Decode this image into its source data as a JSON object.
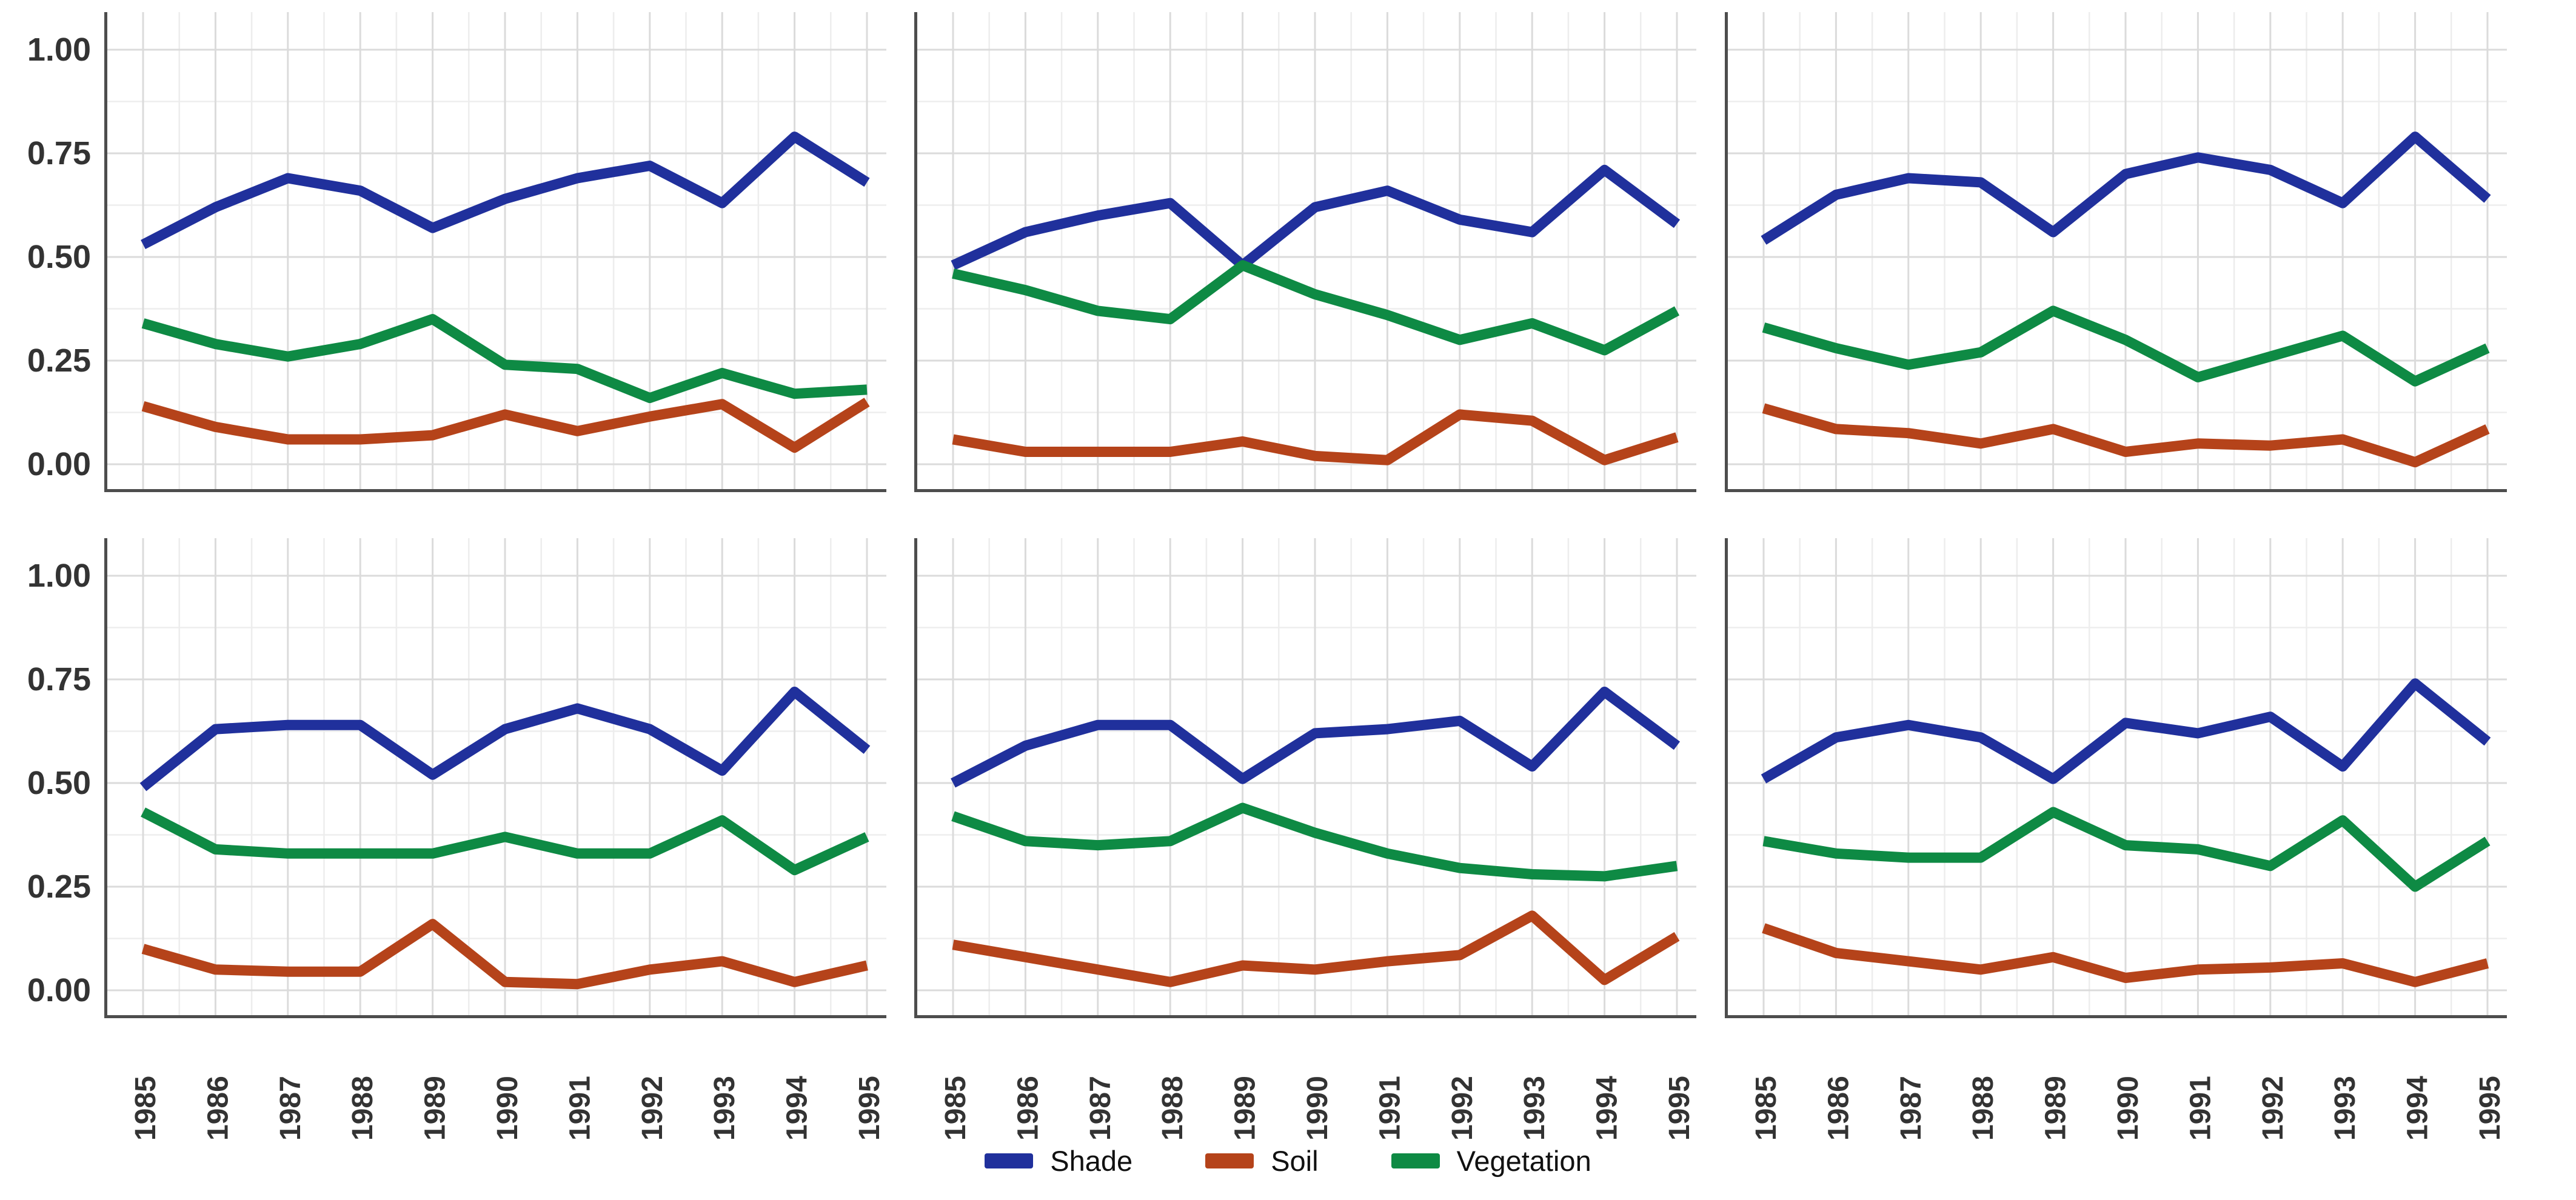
{
  "chart_data": {
    "type": "line",
    "layout": "facet grid, 2 rows x 3 columns, shared axes",
    "x": [
      1985,
      1986,
      1987,
      1988,
      1989,
      1990,
      1991,
      1992,
      1993,
      1994,
      1995
    ],
    "x_tick_labels": [
      "1985",
      "1986",
      "1987",
      "1988",
      "1989",
      "1990",
      "1991",
      "1992",
      "1993",
      "1994",
      "1995"
    ],
    "x_tick_rotation_deg": -90,
    "y_tick_labels": [
      "1.00",
      "0.75",
      "0.50",
      "0.25",
      "0.00"
    ],
    "y_tick_values": [
      1.0,
      0.75,
      0.5,
      0.25,
      0.0
    ],
    "ylim": [
      0,
      1
    ],
    "grid": "major and minor gridlines, light gray on white panels",
    "legend_position": "bottom-center",
    "series_names": [
      "Shade",
      "Soil",
      "Vegetation"
    ],
    "panels": [
      {
        "id": "top-left",
        "row": 0,
        "col": 0,
        "series": {
          "Shade": [
            0.53,
            0.62,
            0.69,
            0.66,
            0.57,
            0.64,
            0.69,
            0.72,
            0.63,
            0.79,
            0.68
          ],
          "Soil": [
            0.14,
            0.09,
            0.06,
            0.06,
            0.07,
            0.12,
            0.08,
            0.115,
            0.145,
            0.04,
            0.15
          ],
          "Vegetation": [
            0.34,
            0.29,
            0.26,
            0.29,
            0.35,
            0.24,
            0.23,
            0.16,
            0.22,
            0.17,
            0.18
          ]
        }
      },
      {
        "id": "top-middle",
        "row": 0,
        "col": 1,
        "series": {
          "Shade": [
            0.48,
            0.56,
            0.6,
            0.63,
            0.48,
            0.62,
            0.66,
            0.59,
            0.56,
            0.71,
            0.58
          ],
          "Soil": [
            0.06,
            0.03,
            0.03,
            0.03,
            0.055,
            0.02,
            0.01,
            0.12,
            0.105,
            0.01,
            0.065
          ],
          "Vegetation": [
            0.46,
            0.42,
            0.37,
            0.35,
            0.48,
            0.41,
            0.36,
            0.3,
            0.34,
            0.275,
            0.37
          ]
        }
      },
      {
        "id": "top-right",
        "row": 0,
        "col": 2,
        "series": {
          "Shade": [
            0.54,
            0.65,
            0.69,
            0.68,
            0.56,
            0.7,
            0.74,
            0.71,
            0.63,
            0.79,
            0.64
          ],
          "Soil": [
            0.135,
            0.085,
            0.075,
            0.05,
            0.085,
            0.03,
            0.05,
            0.045,
            0.06,
            0.005,
            0.085
          ],
          "Vegetation": [
            0.33,
            0.28,
            0.24,
            0.27,
            0.37,
            0.3,
            0.21,
            0.26,
            0.31,
            0.2,
            0.28
          ]
        }
      },
      {
        "id": "bottom-left",
        "row": 1,
        "col": 0,
        "series": {
          "Shade": [
            0.49,
            0.63,
            0.64,
            0.64,
            0.52,
            0.63,
            0.68,
            0.63,
            0.53,
            0.72,
            0.58
          ],
          "Soil": [
            0.1,
            0.05,
            0.045,
            0.045,
            0.16,
            0.02,
            0.015,
            0.05,
            0.07,
            0.02,
            0.06
          ],
          "Vegetation": [
            0.43,
            0.34,
            0.33,
            0.33,
            0.33,
            0.37,
            0.33,
            0.33,
            0.41,
            0.29,
            0.37
          ]
        }
      },
      {
        "id": "bottom-middle",
        "row": 1,
        "col": 1,
        "series": {
          "Shade": [
            0.5,
            0.59,
            0.64,
            0.64,
            0.51,
            0.62,
            0.63,
            0.65,
            0.54,
            0.72,
            0.59
          ],
          "Soil": [
            0.11,
            0.08,
            0.05,
            0.02,
            0.06,
            0.05,
            0.07,
            0.085,
            0.18,
            0.025,
            0.13
          ],
          "Vegetation": [
            0.42,
            0.36,
            0.35,
            0.36,
            0.44,
            0.38,
            0.33,
            0.295,
            0.28,
            0.275,
            0.3
          ]
        }
      },
      {
        "id": "bottom-right",
        "row": 1,
        "col": 2,
        "series": {
          "Shade": [
            0.51,
            0.61,
            0.64,
            0.61,
            0.51,
            0.645,
            0.62,
            0.66,
            0.54,
            0.74,
            0.6
          ],
          "Soil": [
            0.15,
            0.09,
            0.07,
            0.05,
            0.08,
            0.03,
            0.05,
            0.055,
            0.065,
            0.02,
            0.065
          ],
          "Vegetation": [
            0.36,
            0.33,
            0.32,
            0.32,
            0.43,
            0.35,
            0.34,
            0.3,
            0.41,
            0.25,
            0.36
          ]
        }
      }
    ]
  },
  "legend": {
    "items": [
      {
        "label": "Shade",
        "color": "#20309C"
      },
      {
        "label": "Soil",
        "color": "#B5431A"
      },
      {
        "label": "Vegetation",
        "color": "#0E8A44"
      }
    ]
  },
  "colors": {
    "shade": "#20309C",
    "soil": "#B5431A",
    "vegetation": "#0E8A44",
    "grid_major": "#DBDBDB",
    "grid_minor": "#EDEDED",
    "spine": "#4D4D4D",
    "tick_text": "#333333",
    "legend_text": "#111111",
    "background": "#FFFFFF"
  }
}
